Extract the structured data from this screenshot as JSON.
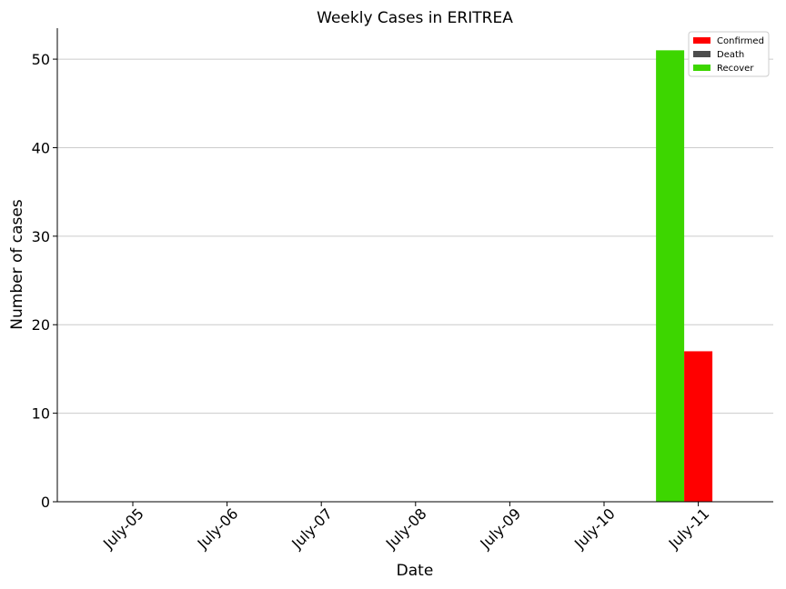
{
  "chart_data": {
    "type": "bar",
    "title": "Weekly Cases in ERITREA",
    "xlabel": "Date",
    "ylabel": "Number of cases",
    "categories": [
      "July-05",
      "July-06",
      "July-07",
      "July-08",
      "July-09",
      "July-10",
      "July-11"
    ],
    "series": [
      {
        "name": "Recover",
        "color": "#3dd600",
        "values": [
          0,
          0,
          0,
          0,
          0,
          0,
          51
        ]
      },
      {
        "name": "Confirmed",
        "color": "#ff0000",
        "values": [
          0,
          0,
          0,
          0,
          0,
          0,
          17
        ]
      },
      {
        "name": "Death",
        "color": "#4d4d4d",
        "values": [
          0,
          0,
          0,
          0,
          0,
          0,
          0
        ]
      }
    ],
    "legend_order": [
      "Confirmed",
      "Death",
      "Recover"
    ],
    "ylim": [
      0,
      53.5
    ],
    "yticks": [
      0,
      10,
      20,
      30,
      40,
      50
    ],
    "grid": "horizontal",
    "legend_position": "top-right"
  }
}
